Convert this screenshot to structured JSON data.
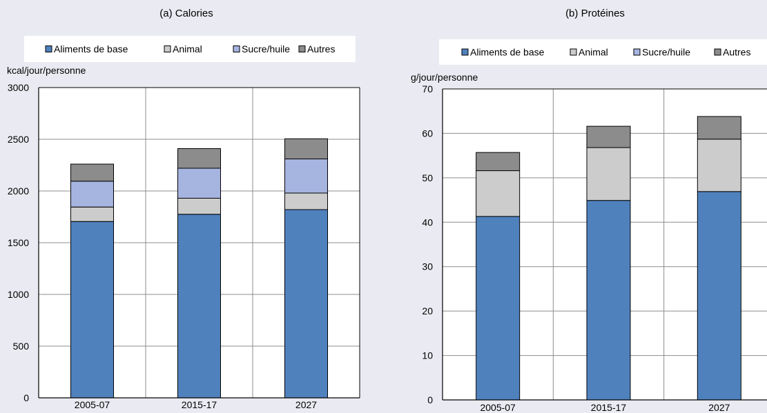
{
  "chart_data": [
    {
      "type": "bar",
      "stacked": true,
      "title": "(a) Calories",
      "ylabel": "kcal/jour/personne",
      "categories": [
        "2005-07",
        "2015-17",
        "2027"
      ],
      "ylim": [
        0,
        3000
      ],
      "yticks": [
        0,
        500,
        1000,
        1500,
        2000,
        2500,
        3000
      ],
      "grid": true,
      "legend": "top",
      "series": [
        {
          "name": "Aliments de base",
          "color": "#4f81bd",
          "values": [
            1705,
            1775,
            1820
          ]
        },
        {
          "name": "Animal",
          "color": "#cccccc",
          "values": [
            140,
            155,
            160
          ]
        },
        {
          "name": "Sucre/huile",
          "color": "#a6b4e0",
          "values": [
            250,
            290,
            330
          ]
        },
        {
          "name": "Autres",
          "color": "#8c8c8c",
          "values": [
            165,
            190,
            195
          ]
        }
      ]
    },
    {
      "type": "bar",
      "stacked": true,
      "title": "(b) Protéines",
      "ylabel": "g/jour/personne",
      "categories": [
        "2005-07",
        "2015-17",
        "2027"
      ],
      "ylim": [
        0,
        70
      ],
      "yticks": [
        0,
        10,
        20,
        30,
        40,
        50,
        60,
        70
      ],
      "grid": true,
      "legend": "top",
      "series": [
        {
          "name": "Aliments de base",
          "color": "#4f81bd",
          "values": [
            41.3,
            44.9,
            46.9
          ]
        },
        {
          "name": "Animal",
          "color": "#cccccc",
          "values": [
            10.3,
            11.9,
            11.8
          ]
        },
        {
          "name": "Sucre/huile",
          "color": "#a6b4e0",
          "values": [
            0,
            0,
            0
          ]
        },
        {
          "name": "Autres",
          "color": "#8c8c8c",
          "values": [
            4.1,
            4.8,
            5.1
          ]
        }
      ]
    }
  ]
}
